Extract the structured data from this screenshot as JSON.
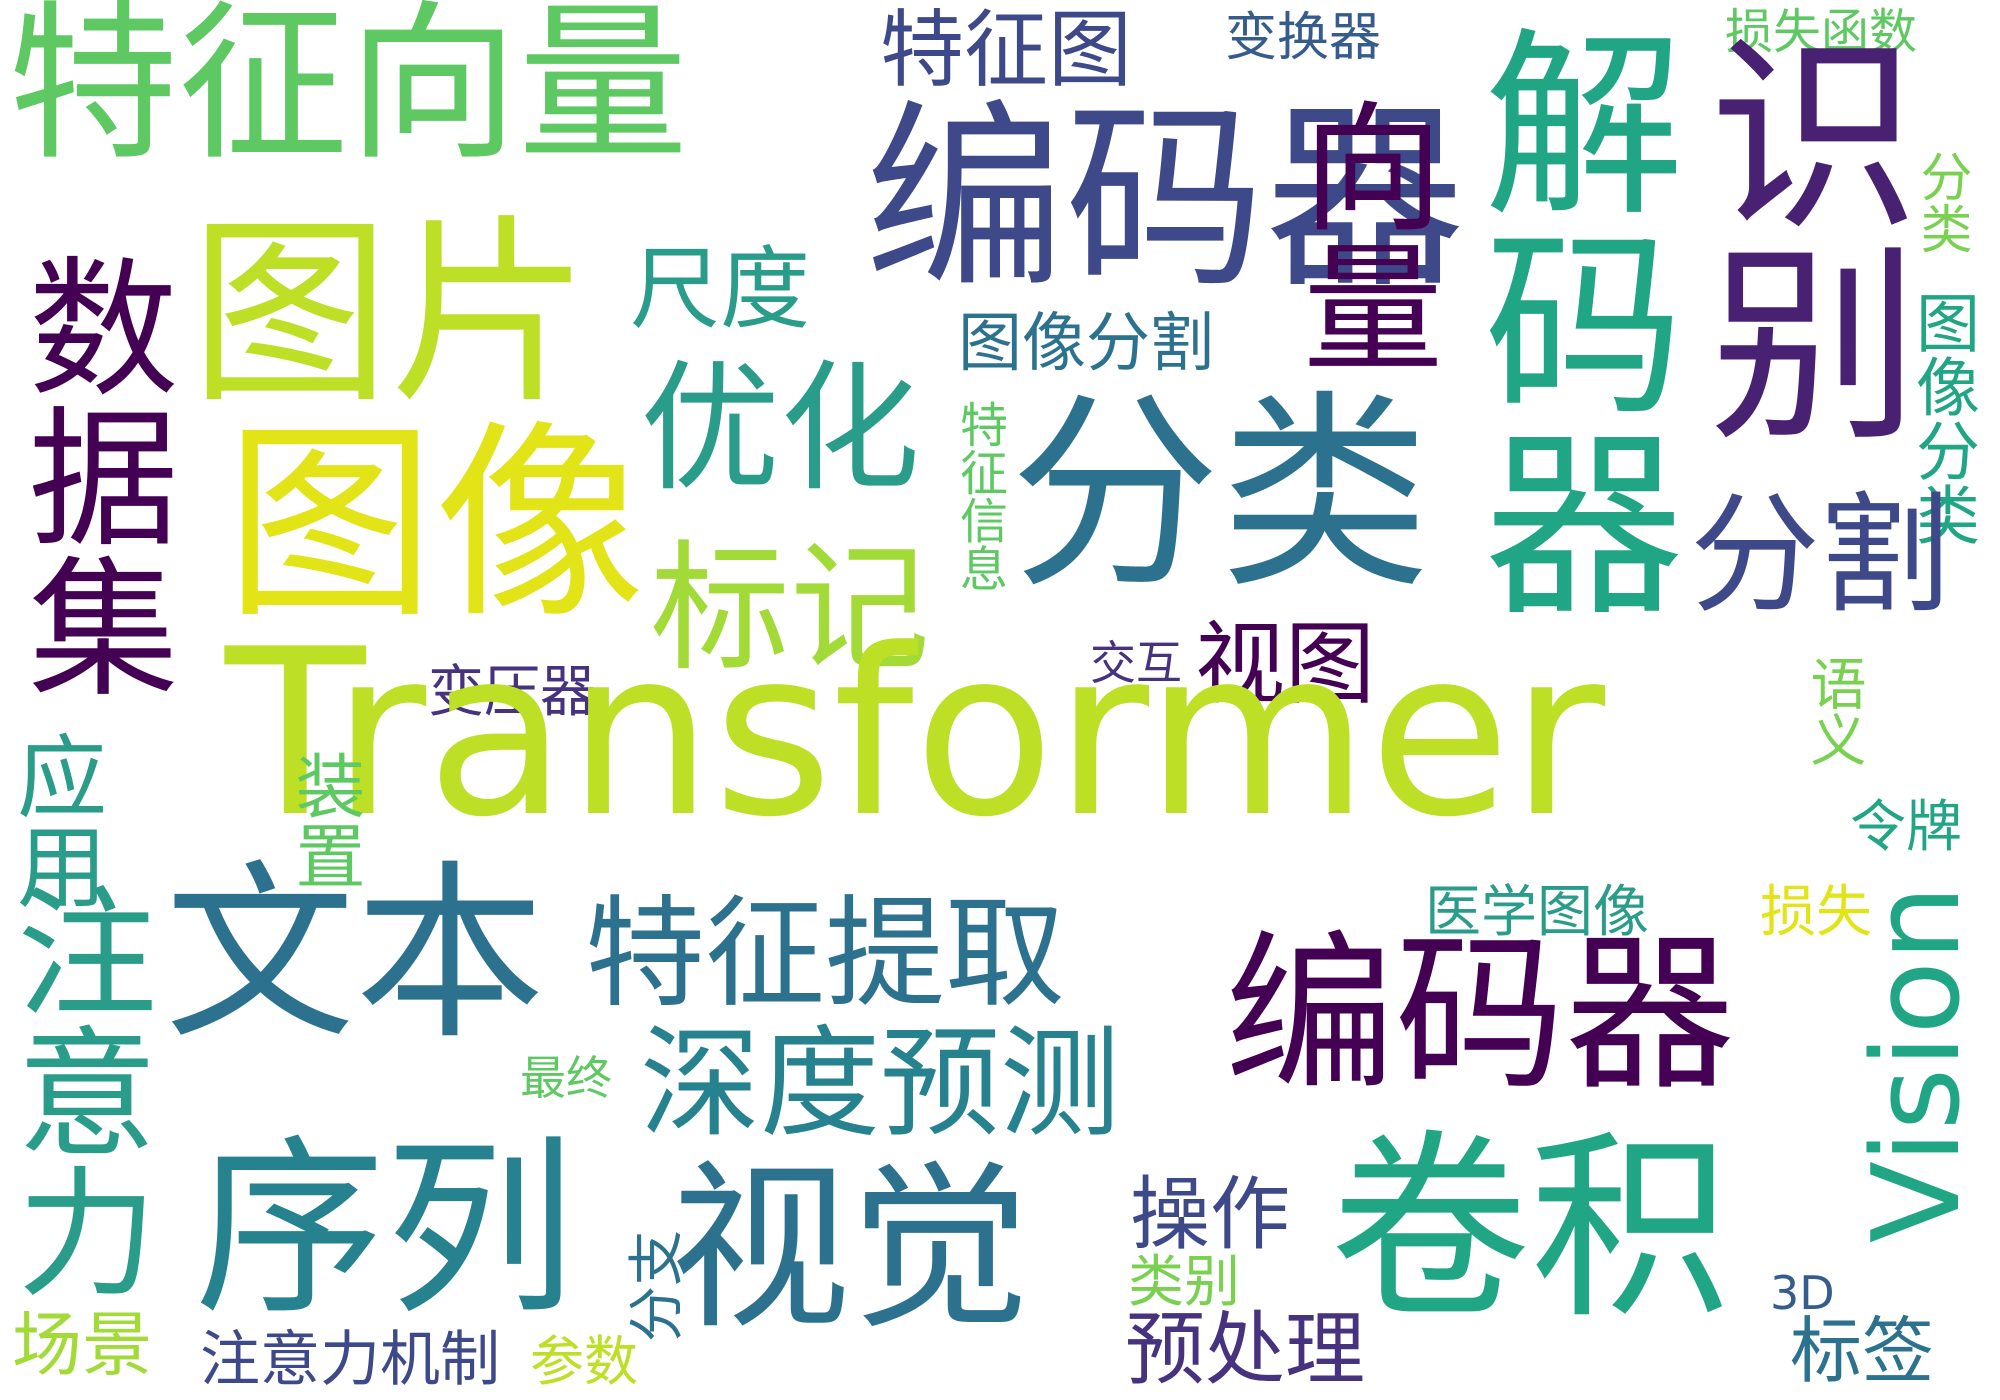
{
  "words": {
    "transformer": "Transformer",
    "tezhengxiangliang": "特征向量",
    "tupian": "图片",
    "tuxiang": "图像",
    "bianmaqi_top": "编码器",
    "xiangliang": "向量",
    "jiemaqi": "解码器",
    "shibie": "识别",
    "shujuji": "数据集",
    "tezhengtu": "特征图",
    "bianhuanqi": "变换器",
    "sunshihanshu": "损失函数",
    "fenlei_small": "分类",
    "tuxiangfenlei": "图像分类",
    "chidu": "尺度",
    "tuxiangfenge": "图像分割",
    "youhua": "优化",
    "fenlei": "分类",
    "fenge": "分割",
    "biaoji": "标记",
    "tezhengxinxi": "特征信息",
    "shitu": "视图",
    "jiaohu": "交互",
    "yuyi": "语义",
    "bianyaqi": "变压器",
    "yingyong": "应用",
    "zhuyili": "注意力",
    "zhuangzhi": "装置",
    "lingpai": "令牌",
    "wenben": "文本",
    "tezhengtiqu": "特征提取",
    "yixuetuxiang": "医学图像",
    "sunshi": "损失",
    "bianmaqi": "编码器",
    "vision": "Vision",
    "zuizhong": "最终",
    "shenduyuce": "深度预测",
    "xulie": "序列",
    "shijue": "视觉",
    "caozuo": "操作",
    "juanji": "卷积",
    "fenzhi": "分支",
    "leibie": "类别",
    "threed": "3D",
    "changjing": "场景",
    "zhuyilijizhi": "注意力机制",
    "canshu": "参数",
    "yuchuli": "预处理",
    "biaoqian": "标签"
  },
  "colors": {
    "yellow": "#e2e418",
    "lime": "#bddf26",
    "yellowgreen": "#a2da37",
    "green": "#5ec962",
    "lightgreen": "#7ad151",
    "teal": "#2a9d8a",
    "seagreen": "#21a685",
    "teal2": "#26828e",
    "blue": "#2c728e",
    "steel": "#365c8d",
    "indigo": "#3e4989",
    "navy": "#46327e",
    "purple": "#440154",
    "darkpurple": "#482173"
  }
}
